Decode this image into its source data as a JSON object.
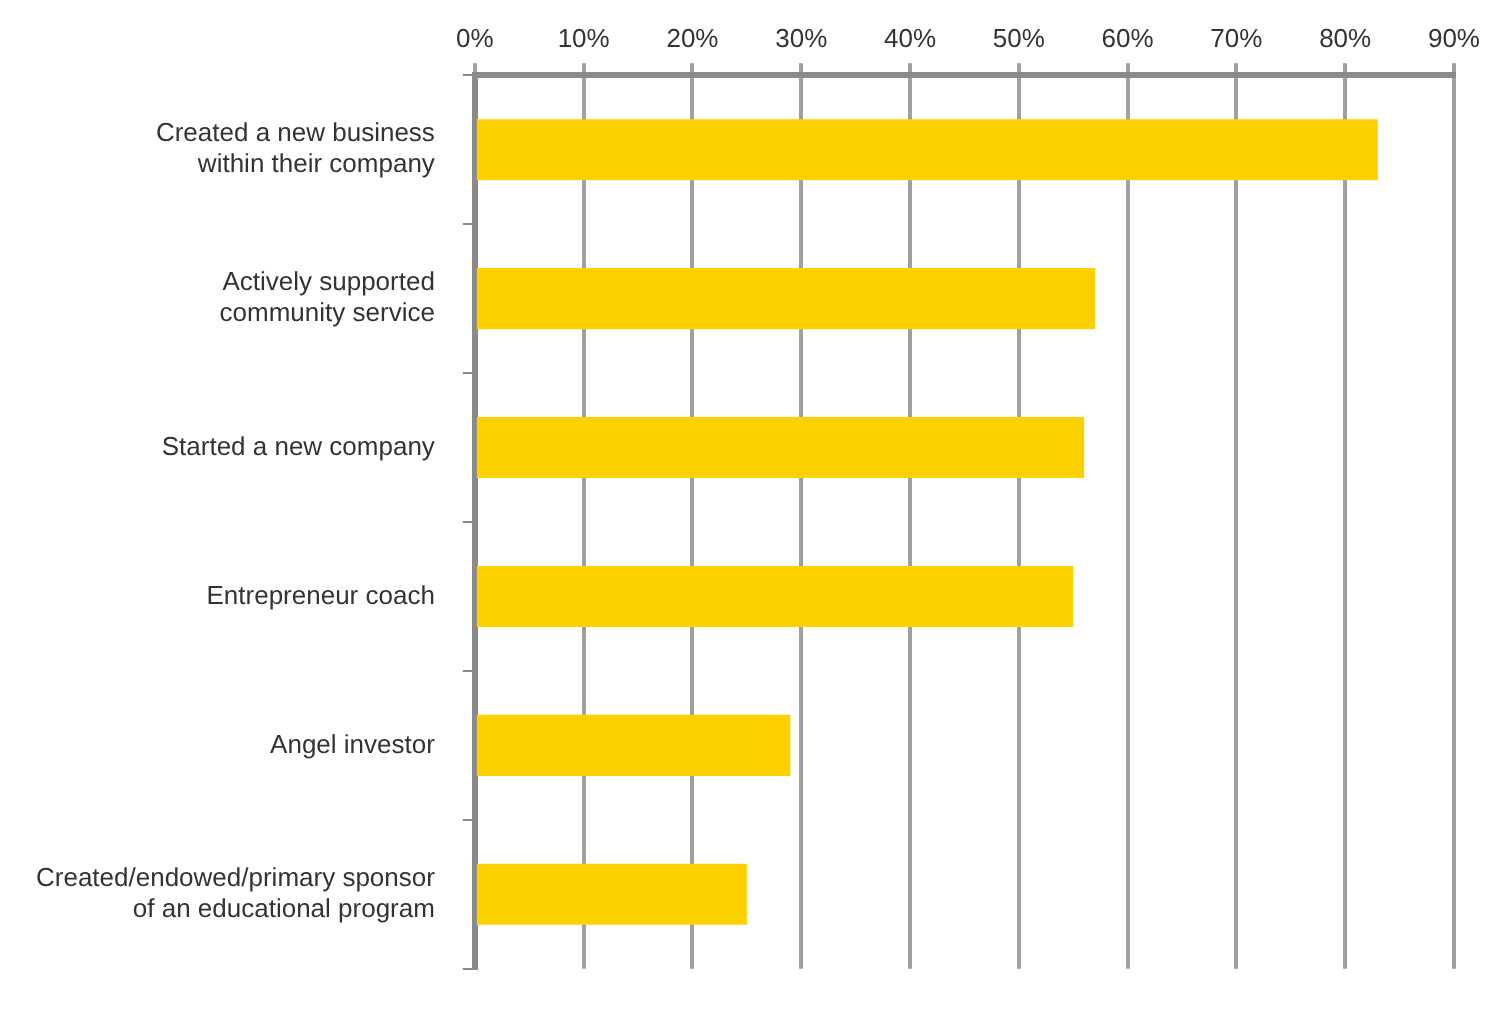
{
  "chart_data": {
    "type": "bar",
    "orientation": "horizontal",
    "categories": [
      "Created a new business\nwithin their company",
      "Actively supported\ncommunity service",
      "Started a new company",
      "Entrepreneur coach",
      "Angel investor",
      "Created/endowed/primary sponsor\nof an educational program"
    ],
    "values": [
      83,
      57,
      56,
      55,
      29,
      25
    ],
    "color": "#fdd100",
    "xlim": [
      0,
      90
    ],
    "xticks": [
      {
        "value": 0,
        "label": "0%"
      },
      {
        "value": 10,
        "label": "10%"
      },
      {
        "value": 20,
        "label": "20%"
      },
      {
        "value": 30,
        "label": "30%"
      },
      {
        "value": 40,
        "label": "40%"
      },
      {
        "value": 50,
        "label": "50%"
      },
      {
        "value": 60,
        "label": "60%"
      },
      {
        "value": 70,
        "label": "70%"
      },
      {
        "value": 80,
        "label": "80%"
      },
      {
        "value": 90,
        "label": "90%"
      }
    ],
    "grid": "x",
    "legend": false
  }
}
